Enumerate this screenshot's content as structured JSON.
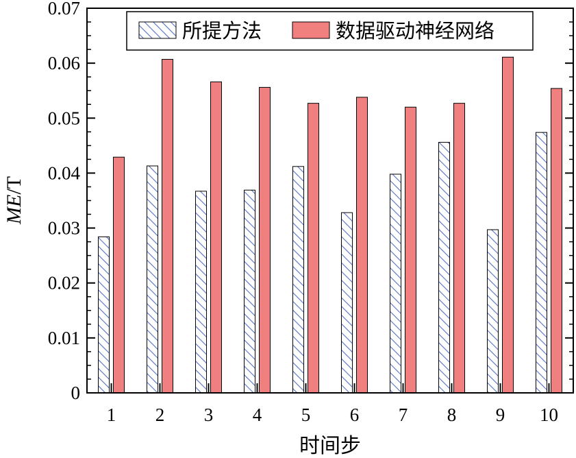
{
  "chart_data": {
    "type": "bar",
    "categories": [
      "1",
      "2",
      "3",
      "4",
      "5",
      "6",
      "7",
      "8",
      "9",
      "10"
    ],
    "series": [
      {
        "name": "所提方法",
        "values": [
          0.0284,
          0.0413,
          0.0367,
          0.0369,
          0.0412,
          0.0328,
          0.0398,
          0.0456,
          0.0297,
          0.0474
        ],
        "fill": "hatch",
        "color": "#5470c6"
      },
      {
        "name": "数据驱动神经网络",
        "values": [
          0.0429,
          0.0607,
          0.0566,
          0.0556,
          0.0527,
          0.0538,
          0.052,
          0.0527,
          0.0611,
          0.0554
        ],
        "fill": "solid",
        "color": "#f08080"
      }
    ],
    "xlabel": "时间步",
    "ylabel_italic": "ME",
    "ylabel_unit": "/T",
    "ylim": [
      0,
      0.07
    ],
    "yticks": [
      "0",
      "0.01",
      "0.02",
      "0.03",
      "0.04",
      "0.05",
      "0.06",
      "0.07"
    ],
    "grid": false,
    "legend_position": "top"
  }
}
